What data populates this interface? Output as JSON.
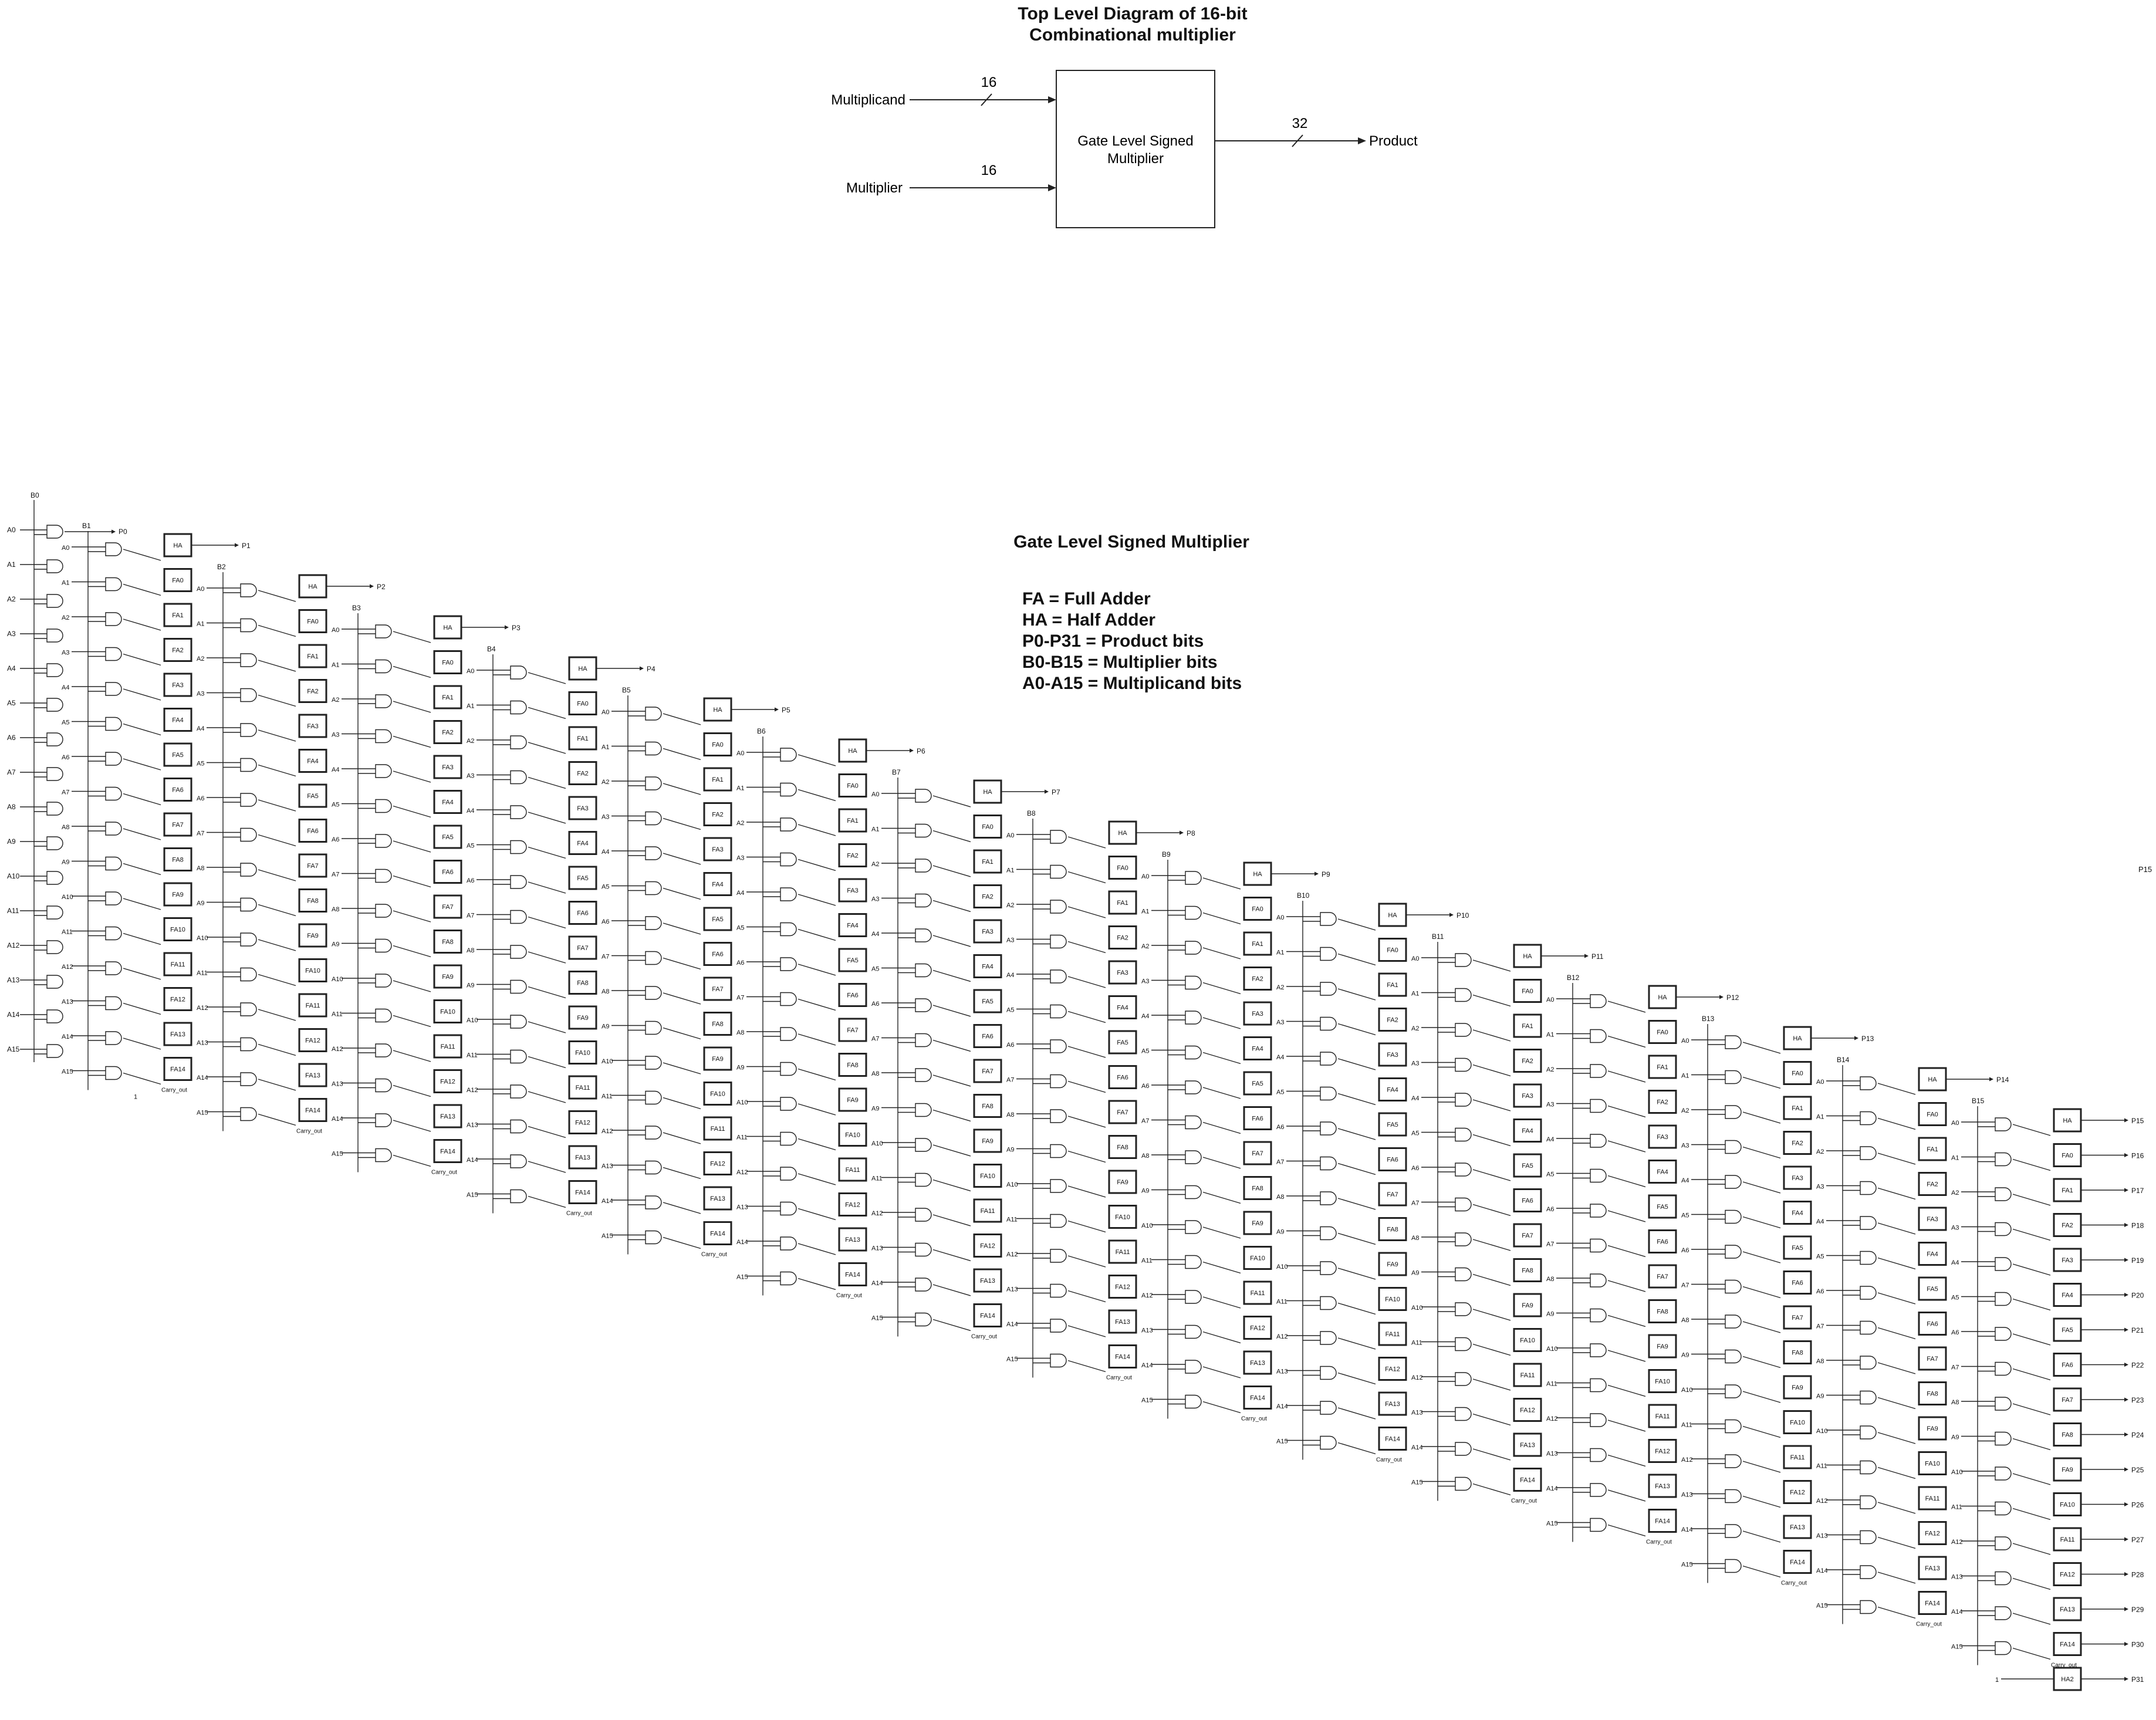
{
  "top_level": {
    "title_line1": "Top Level Diagram of 16-bit",
    "title_line2": "Combinational multiplier",
    "multiplicand_label": "Multiplicand",
    "multiplier_label": "Multiplier",
    "block_line1": "Gate Level Signed",
    "block_line2": "Multiplier",
    "product_label": "Product",
    "width_in_a": "16",
    "width_in_b": "16",
    "width_out": "32"
  },
  "gate_level": {
    "title": "Gate Level Signed Multiplier",
    "legend": [
      "FA = Full Adder",
      "HA = Half Adder",
      "P0-P31 = Product bits",
      "B0-B15 = Multiplier bits",
      "A0-A15 = Multiplicand bits"
    ],
    "carry_label": "Carry_out",
    "const_one": "1",
    "half_adder": "HA",
    "half_adder_2": "HA2",
    "adders": [
      "FA0",
      "FA1",
      "FA2",
      "FA3",
      "FA4",
      "FA5",
      "FA6",
      "FA7",
      "FA8",
      "FA9",
      "FA10",
      "FA11",
      "FA12",
      "FA13",
      "FA14"
    ],
    "multiplicand_bits": [
      "A0",
      "A1",
      "A2",
      "A3",
      "A4",
      "A5",
      "A6",
      "A7",
      "A8",
      "A9",
      "A10",
      "A11",
      "A12",
      "A13",
      "A14",
      "A15"
    ],
    "multiplier_bits": [
      "B0",
      "B1",
      "B2",
      "B3",
      "B4",
      "B5",
      "B6",
      "B7",
      "B8",
      "B9",
      "B10",
      "B11",
      "B12",
      "B13",
      "B14",
      "B15"
    ],
    "product_bits": [
      "P0",
      "P1",
      "P2",
      "P3",
      "P4",
      "P5",
      "P6",
      "P7",
      "P8",
      "P9",
      "P10",
      "P11",
      "P12",
      "P13",
      "P14",
      "P15",
      "P16",
      "P17",
      "P18",
      "P19",
      "P20",
      "P21",
      "P22",
      "P23",
      "P24",
      "P25",
      "P26",
      "P27",
      "P28",
      "P29",
      "P30",
      "P31"
    ]
  }
}
